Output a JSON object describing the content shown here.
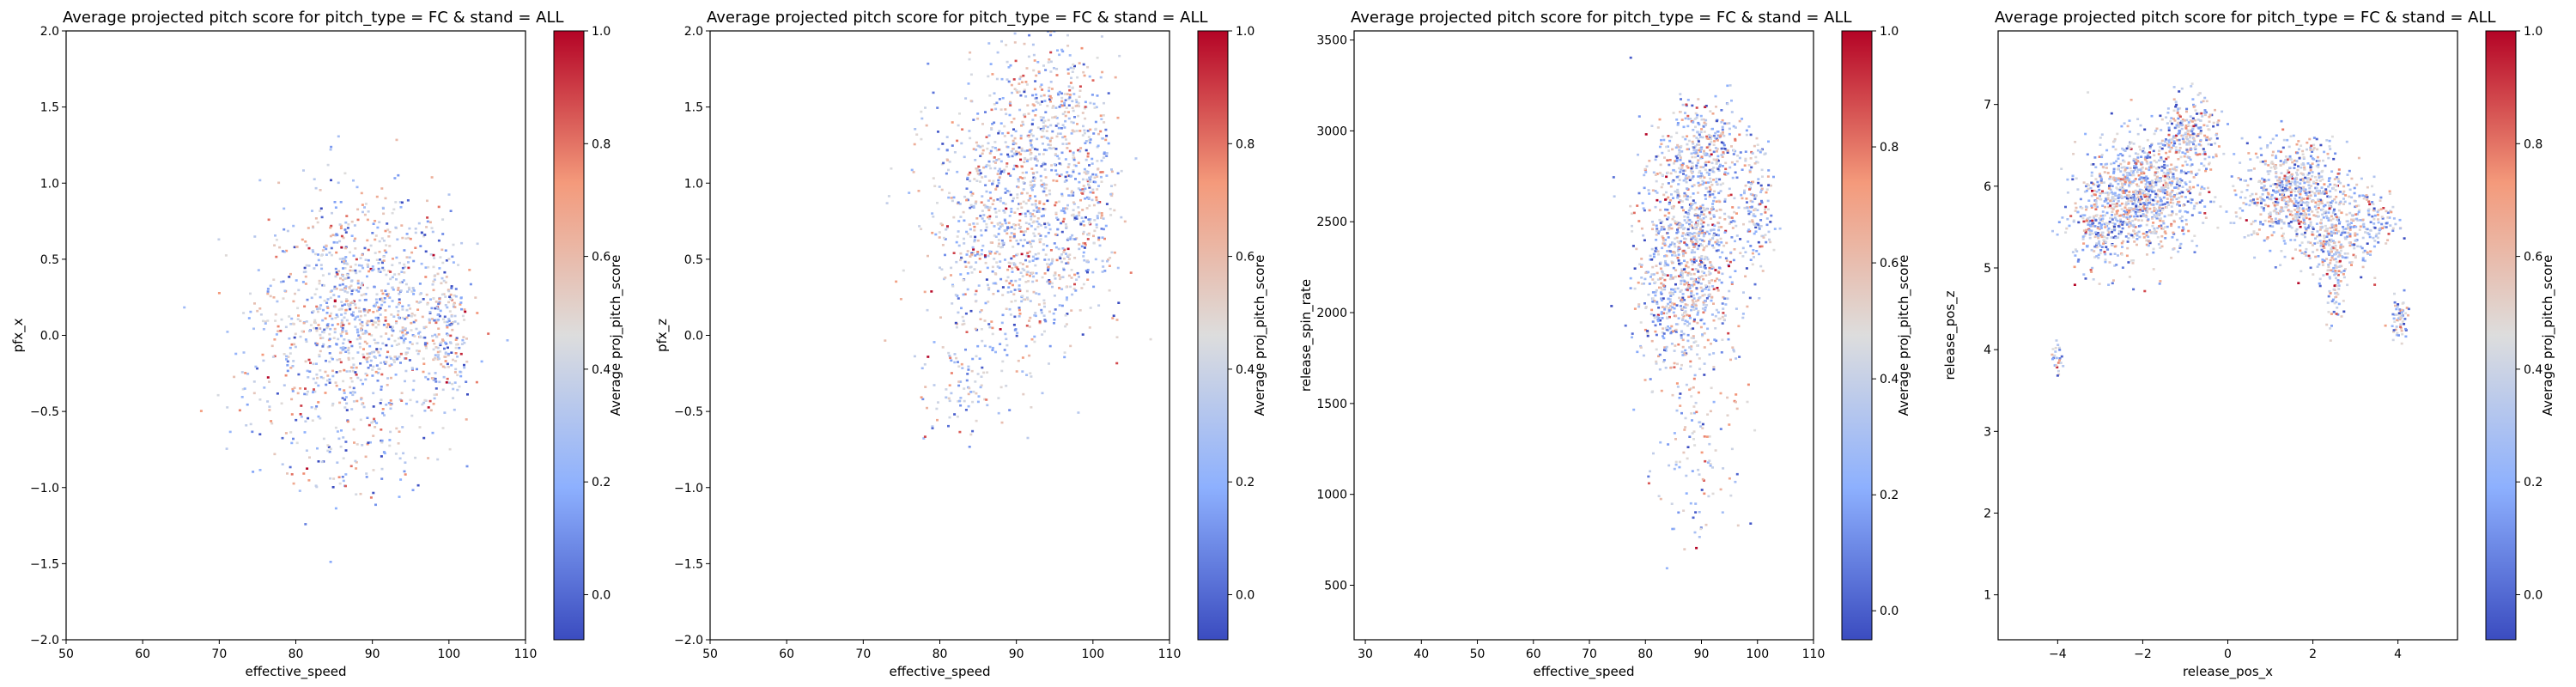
{
  "chart_data": [
    {
      "type": "heatmap",
      "title": "Average projected pitch score for pitch_type = FC & stand = ALL",
      "xlabel": "effective_speed",
      "ylabel": "pfx_x",
      "xlim": [
        50,
        110
      ],
      "ylim": [
        -2.0,
        2.0
      ],
      "xticks": [
        "50",
        "60",
        "70",
        "80",
        "90",
        "100",
        "110"
      ],
      "yticks": [
        "−2.0",
        "−1.5",
        "−1.0",
        "−0.5",
        "0.0",
        "0.5",
        "1.0",
        "1.5",
        "2.0"
      ],
      "colorbar": {
        "label": "Average proj_pitch_score",
        "cmap": "coolwarm",
        "ticks": [
          "0.0",
          "0.2",
          "0.4",
          "0.6",
          "0.8",
          "1.0"
        ],
        "range": [
          -0.08,
          1.0
        ]
      },
      "blobs": [
        {
          "cx": 88,
          "cy": 0.12,
          "sx": 6,
          "sy": 0.4,
          "n": 1100
        },
        {
          "cx": 99.5,
          "cy": 0.05,
          "sx": 1.6,
          "sy": 0.32,
          "n": 200
        },
        {
          "cx": 86,
          "cy": -0.85,
          "sx": 6,
          "sy": 0.14,
          "n": 60
        },
        {
          "cx": 76,
          "cy": -0.45,
          "sx": 2.5,
          "sy": 0.18,
          "n": 30
        }
      ],
      "grid": false
    },
    {
      "type": "heatmap",
      "title": "Average projected pitch score for pitch_type = FC & stand = ALL",
      "xlabel": "effective_speed",
      "ylabel": "pfx_z",
      "xlim": [
        50,
        110
      ],
      "ylim": [
        -2.0,
        2.0
      ],
      "xticks": [
        "50",
        "60",
        "70",
        "80",
        "90",
        "100",
        "110"
      ],
      "yticks": [
        "−2.0",
        "−1.5",
        "−1.0",
        "−0.5",
        "0.0",
        "0.5",
        "1.0",
        "1.5",
        "2.0"
      ],
      "colorbar": {
        "label": "Average proj_pitch_score",
        "cmap": "coolwarm",
        "ticks": [
          "0.0",
          "0.2",
          "0.4",
          "0.6",
          "0.8",
          "1.0"
        ],
        "range": [
          -0.08,
          1.0
        ]
      },
      "blobs": [
        {
          "cx": 90,
          "cy": 0.75,
          "sx": 5.5,
          "sy": 0.45,
          "n": 1100
        },
        {
          "cx": 95,
          "cy": 1.5,
          "sx": 3.5,
          "sy": 0.25,
          "n": 250
        },
        {
          "cx": 99.5,
          "cy": 0.9,
          "sx": 1.6,
          "sy": 0.3,
          "n": 150
        },
        {
          "cx": 83,
          "cy": -0.35,
          "sx": 3,
          "sy": 0.15,
          "n": 80
        }
      ],
      "grid": false
    },
    {
      "type": "heatmap",
      "title": "Average projected pitch score for pitch_type = FC & stand = ALL",
      "xlabel": "effective_speed",
      "ylabel": "release_spin_rate",
      "xlim": [
        28,
        110
      ],
      "ylim": [
        200,
        3550
      ],
      "xticks": [
        "30",
        "40",
        "50",
        "60",
        "70",
        "80",
        "90",
        "100",
        "110"
      ],
      "yticks": [
        "500",
        "1000",
        "1500",
        "2000",
        "2500",
        "3000",
        "3500"
      ],
      "colorbar": {
        "label": "Average proj_pitch_score",
        "cmap": "coolwarm",
        "ticks": [
          "0.0",
          "0.2",
          "0.4",
          "0.6",
          "0.8",
          "1.0"
        ],
        "range": [
          -0.05,
          1.0
        ]
      },
      "blobs": [
        {
          "cx": 88,
          "cy": 2350,
          "sx": 4.5,
          "sy": 330,
          "n": 1000
        },
        {
          "cx": 91,
          "cy": 2900,
          "sx": 4,
          "sy": 120,
          "n": 250
        },
        {
          "cx": 100,
          "cy": 2600,
          "sx": 1.4,
          "sy": 160,
          "n": 120
        },
        {
          "cx": 82,
          "cy": 2050,
          "sx": 2.5,
          "sy": 200,
          "n": 120
        },
        {
          "cx": 89,
          "cy": 1150,
          "sx": 3.5,
          "sy": 300,
          "n": 110
        }
      ],
      "grid": false
    },
    {
      "type": "heatmap",
      "title": "Average projected pitch score for pitch_type = FC & stand = ALL",
      "xlabel": "release_pos_x",
      "ylabel": "release_pos_z",
      "xlim": [
        -5.4,
        5.4
      ],
      "ylim": [
        0.45,
        7.9
      ],
      "xticks": [
        "−4",
        "−2",
        "0",
        "2",
        "4"
      ],
      "yticks": [
        "1",
        "2",
        "3",
        "4",
        "5",
        "6",
        "7"
      ],
      "colorbar": {
        "label": "Average proj_pitch_score",
        "cmap": "coolwarm",
        "ticks": [
          "0.0",
          "0.2",
          "0.4",
          "0.6",
          "0.8",
          "1.0"
        ],
        "range": [
          -0.08,
          1.0
        ]
      },
      "blobs": [
        {
          "cx": -2.0,
          "cy": 5.9,
          "sx": 0.65,
          "sy": 0.35,
          "n": 900
        },
        {
          "cx": -3.0,
          "cy": 5.5,
          "sx": 0.4,
          "sy": 0.3,
          "n": 220
        },
        {
          "cx": -0.9,
          "cy": 6.65,
          "sx": 0.35,
          "sy": 0.22,
          "n": 250
        },
        {
          "cx": 1.6,
          "cy": 5.9,
          "sx": 0.6,
          "sy": 0.32,
          "n": 700
        },
        {
          "cx": 2.5,
          "cy": 5.25,
          "sx": 0.4,
          "sy": 0.22,
          "n": 180
        },
        {
          "cx": 3.3,
          "cy": 5.6,
          "sx": 0.35,
          "sy": 0.2,
          "n": 150
        },
        {
          "cx": 2.5,
          "cy": 4.95,
          "sx": 0.1,
          "sy": 0.35,
          "n": 80
        },
        {
          "cx": 4.05,
          "cy": 4.4,
          "sx": 0.12,
          "sy": 0.12,
          "n": 60
        },
        {
          "cx": -4.0,
          "cy": 3.85,
          "sx": 0.08,
          "sy": 0.1,
          "n": 25
        }
      ],
      "grid": false
    }
  ]
}
